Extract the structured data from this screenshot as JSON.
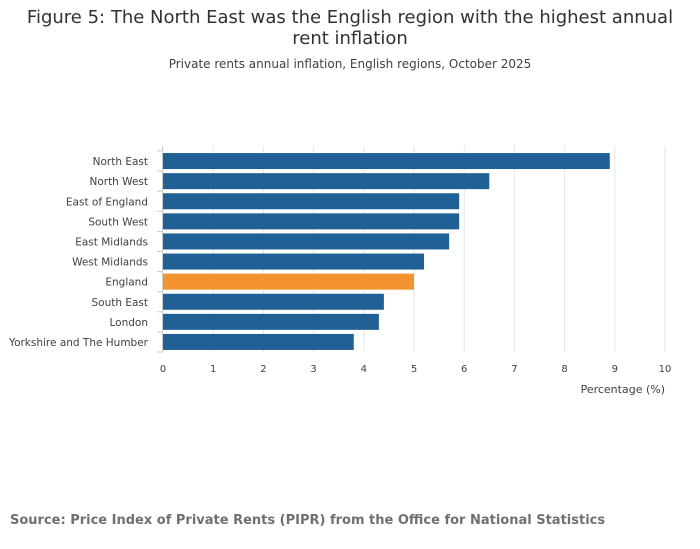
{
  "title_line1": "Figure 5: The North East was the English region with the highest annual",
  "title_line2": "rent inflation",
  "subtitle": "Private rents annual inflation, English regions, October 2025",
  "source": "Source: Price Index of Private Rents (PIPR) from the Office for National Statistics",
  "colors": {
    "bar": "#206095",
    "highlight": "#F39431",
    "grid": "#e6e6e6",
    "text": "#414042"
  },
  "chart_data": {
    "type": "bar",
    "orientation": "horizontal",
    "categories": [
      "North East",
      "North West",
      "East of England",
      "South West",
      "East Midlands",
      "West Midlands",
      "England",
      "South East",
      "London",
      "Yorkshire and The Humber"
    ],
    "values": [
      8.9,
      6.5,
      5.9,
      5.9,
      5.7,
      5.2,
      5.0,
      4.4,
      4.3,
      3.8
    ],
    "highlight": "England",
    "xlabel": "Percentage (%)",
    "xlim": [
      0,
      10
    ],
    "xticks": [
      "0",
      "1",
      "2",
      "3",
      "4",
      "5",
      "6",
      "7",
      "8",
      "9",
      "10"
    ],
    "grid": true
  }
}
